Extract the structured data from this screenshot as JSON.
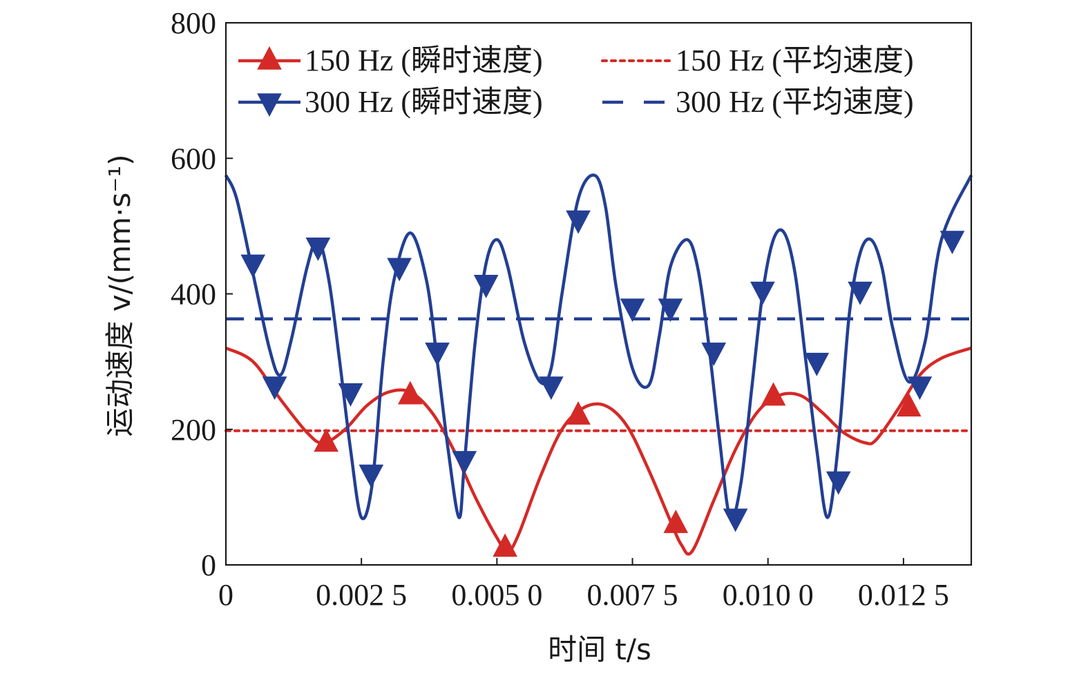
{
  "chart_data": {
    "type": "line",
    "xlabel": "时间 t/s",
    "ylabel": "运动速度 v/(mm·s⁻¹)",
    "xlim": [
      0,
      0.01375
    ],
    "ylim": [
      0,
      800
    ],
    "xticks": [
      0,
      0.0025,
      0.005,
      0.0075,
      0.01,
      0.0125
    ],
    "xtick_labels": [
      "0",
      "0.002 5",
      "0.005 0",
      "0.007 5",
      "0.010 0",
      "0.012 5"
    ],
    "yticks": [
      0,
      200,
      400,
      600,
      800
    ],
    "ytick_labels": [
      "0",
      "200",
      "400",
      "600",
      "800"
    ],
    "legend_position": "top",
    "series": [
      {
        "name": "150 Hz (瞬时速度)",
        "style": "solid",
        "marker": "triangle-up",
        "color": "#d42a27",
        "x": [
          0,
          0.0005,
          0.001,
          0.0015,
          0.0018,
          0.0022,
          0.0026,
          0.003,
          0.0034,
          0.0038,
          0.0042,
          0.0046,
          0.005,
          0.0052,
          0.0054,
          0.0058,
          0.0062,
          0.0066,
          0.007,
          0.0074,
          0.0078,
          0.0082,
          0.0084,
          0.0086,
          0.009,
          0.0094,
          0.0098,
          0.0102,
          0.0106,
          0.011,
          0.0114,
          0.0118,
          0.012,
          0.0124,
          0.0128,
          0.0132,
          0.01375
        ],
        "values": [
          320,
          300,
          245,
          195,
          180,
          200,
          235,
          255,
          255,
          225,
          170,
          100,
          40,
          20,
          45,
          130,
          200,
          232,
          235,
          205,
          140,
          65,
          30,
          20,
          95,
          170,
          225,
          250,
          250,
          225,
          195,
          180,
          185,
          230,
          280,
          305,
          320
        ],
        "markers_x": [
          0.00185,
          0.0034,
          0.00515,
          0.0065,
          0.0083,
          0.0101,
          0.0126
        ],
        "markers_y": [
          180,
          250,
          25,
          220,
          60,
          248,
          232
        ]
      },
      {
        "name": "150 Hz (平均速度)",
        "style": "dotted",
        "color": "#d42a27",
        "x": [
          0,
          0.01375
        ],
        "values": [
          198,
          198
        ]
      },
      {
        "name": "300 Hz (瞬时速度)",
        "style": "solid",
        "marker": "triangle-down",
        "color": "#233f93",
        "x": [
          0,
          0.0002,
          0.0005,
          0.0008,
          0.001,
          0.0012,
          0.0015,
          0.0017,
          0.0019,
          0.0021,
          0.0023,
          0.0025,
          0.0027,
          0.0029,
          0.0031,
          0.0034,
          0.0037,
          0.0039,
          0.0041,
          0.0043,
          0.0044,
          0.0046,
          0.0048,
          0.005,
          0.0052,
          0.0055,
          0.0058,
          0.006,
          0.0062,
          0.0065,
          0.0068,
          0.007,
          0.0072,
          0.0075,
          0.0078,
          0.008,
          0.0082,
          0.0085,
          0.0087,
          0.0089,
          0.0091,
          0.0093,
          0.0095,
          0.0097,
          0.0099,
          0.0101,
          0.0103,
          0.0105,
          0.0107,
          0.0109,
          0.0111,
          0.0113,
          0.0115,
          0.0117,
          0.0119,
          0.0121,
          0.0123,
          0.0126,
          0.0129,
          0.0132,
          0.01375
        ],
        "values": [
          575,
          540,
          430,
          320,
          280,
          330,
          440,
          480,
          420,
          300,
          170,
          70,
          120,
          300,
          420,
          490,
          420,
          300,
          170,
          70,
          150,
          330,
          445,
          480,
          440,
          330,
          270,
          290,
          400,
          540,
          575,
          530,
          410,
          290,
          265,
          340,
          440,
          480,
          440,
          330,
          190,
          70,
          120,
          260,
          400,
          480,
          490,
          430,
          300,
          170,
          70,
          180,
          370,
          460,
          480,
          440,
          350,
          270,
          330,
          480,
          575
        ],
        "markers_x": [
          0.0005,
          0.0009,
          0.0017,
          0.0023,
          0.00268,
          0.0032,
          0.0039,
          0.0044,
          0.0048,
          0.006,
          0.0065,
          0.0075,
          0.0082,
          0.009,
          0.0094,
          0.0099,
          0.0109,
          0.0113,
          0.0117,
          0.0128,
          0.0134
        ],
        "markers_y": [
          445,
          265,
          470,
          255,
          135,
          440,
          315,
          155,
          415,
          265,
          510,
          380,
          380,
          315,
          70,
          405,
          300,
          125,
          405,
          265,
          480
        ]
      },
      {
        "name": "300 Hz (平均速度)",
        "style": "dashed",
        "color": "#233f93",
        "x": [
          0,
          0.01375
        ],
        "values": [
          363,
          363
        ]
      }
    ]
  }
}
